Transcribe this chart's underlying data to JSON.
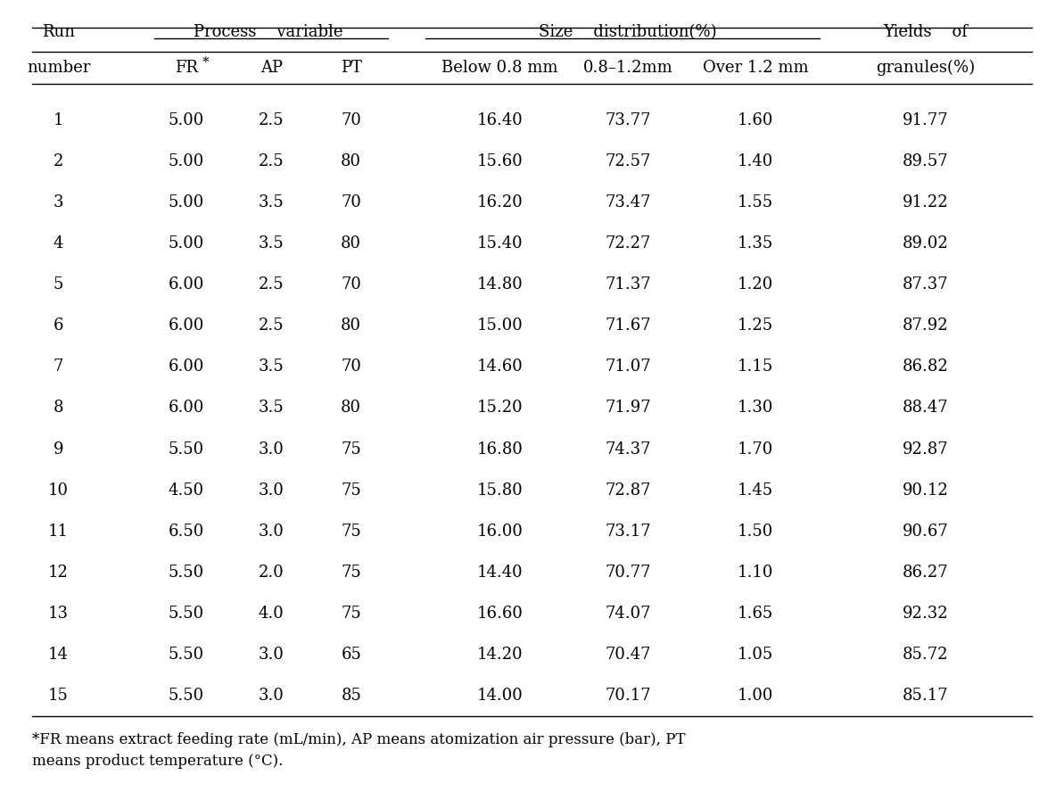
{
  "header_row1": [
    "Run",
    "Process",
    "variable",
    "",
    "Size",
    "distribution(%)",
    "",
    "Yields",
    "of"
  ],
  "header_row2": [
    "number",
    "FR*",
    "AP",
    "PT",
    "Below 0.8 mm",
    "0.8-1.2mm",
    "Over 1.2 mm",
    "granules(%)"
  ],
  "rows": [
    [
      1,
      "5.00",
      "2.5",
      "70",
      "16.40",
      "73.77",
      "1.60",
      "91.77"
    ],
    [
      2,
      "5.00",
      "2.5",
      "80",
      "15.60",
      "72.57",
      "1.40",
      "89.57"
    ],
    [
      3,
      "5.00",
      "3.5",
      "70",
      "16.20",
      "73.47",
      "1.55",
      "91.22"
    ],
    [
      4,
      "5.00",
      "3.5",
      "80",
      "15.40",
      "72.27",
      "1.35",
      "89.02"
    ],
    [
      5,
      "6.00",
      "2.5",
      "70",
      "14.80",
      "71.37",
      "1.20",
      "87.37"
    ],
    [
      6,
      "6.00",
      "2.5",
      "80",
      "15.00",
      "71.67",
      "1.25",
      "87.92"
    ],
    [
      7,
      "6.00",
      "3.5",
      "70",
      "14.60",
      "71.07",
      "1.15",
      "86.82"
    ],
    [
      8,
      "6.00",
      "3.5",
      "80",
      "15.20",
      "71.97",
      "1.30",
      "88.47"
    ],
    [
      9,
      "5.50",
      "3.0",
      "75",
      "16.80",
      "74.37",
      "1.70",
      "92.87"
    ],
    [
      10,
      "4.50",
      "3.0",
      "75",
      "15.80",
      "72.87",
      "1.45",
      "90.12"
    ],
    [
      11,
      "6.50",
      "3.0",
      "75",
      "16.00",
      "73.17",
      "1.50",
      "90.67"
    ],
    [
      12,
      "5.50",
      "2.0",
      "75",
      "14.40",
      "70.77",
      "1.10",
      "86.27"
    ],
    [
      13,
      "5.50",
      "4.0",
      "75",
      "16.60",
      "74.07",
      "1.65",
      "92.32"
    ],
    [
      14,
      "5.50",
      "3.0",
      "65",
      "14.20",
      "70.47",
      "1.05",
      "85.72"
    ],
    [
      15,
      "5.50",
      "3.0",
      "85",
      "14.00",
      "70.17",
      "1.00",
      "85.17"
    ]
  ],
  "footnote_line1": "*FR means extract feeding rate (mL/min), AP means atomization air pressure (bar), PT",
  "footnote_line2": "means product temperature (°C).",
  "bg_color": "white",
  "text_color": "black",
  "font_size": 13,
  "font_family": "serif"
}
